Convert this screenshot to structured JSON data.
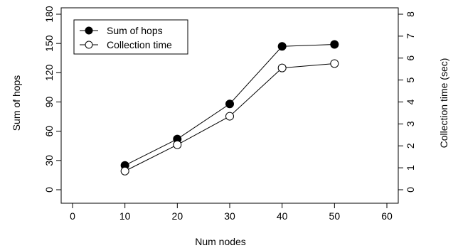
{
  "chart_data": {
    "type": "line",
    "x": [
      10,
      20,
      30,
      40,
      50
    ],
    "xlabel": "Num nodes",
    "xlim": [
      0,
      60
    ],
    "x_ticks": [
      0,
      10,
      20,
      30,
      40,
      50,
      60
    ],
    "y_left": {
      "label": "Sum of hops",
      "lim": [
        0,
        180
      ],
      "ticks": [
        0,
        30,
        60,
        90,
        120,
        150,
        180
      ]
    },
    "y_right": {
      "label": "Collection time (sec)",
      "lim": [
        0,
        8
      ],
      "ticks": [
        0,
        1,
        2,
        3,
        4,
        5,
        6,
        7,
        8
      ]
    },
    "series": [
      {
        "name": "Sum of hops",
        "axis": "left",
        "marker": "filled-circle",
        "values": [
          25,
          52,
          88,
          147,
          149
        ]
      },
      {
        "name": "Collection time",
        "axis": "right",
        "marker": "open-circle",
        "values": [
          0.85,
          2.05,
          3.35,
          5.55,
          5.75
        ]
      }
    ],
    "legend_position": "top-left",
    "grid": false
  }
}
